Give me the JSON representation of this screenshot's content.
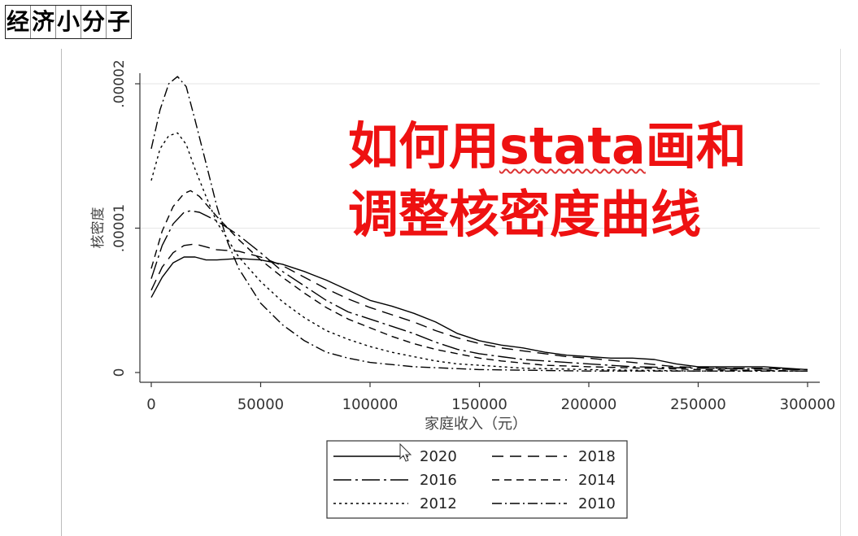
{
  "logo_text": [
    "经",
    "济",
    "小",
    "分",
    "子"
  ],
  "overlay": {
    "line1_prefix": "如何用",
    "line1_word": "stata",
    "line1_suffix": "画和",
    "line2": "调整核密度曲线"
  },
  "colors": {
    "overlay": "#ee1111",
    "lines": "#000000",
    "grid": "#e6e6e6"
  },
  "chart_data": {
    "type": "line",
    "xlabel": "家庭收入（元）",
    "ylabel": "核密度",
    "xlim": [
      0,
      300000
    ],
    "ylim": [
      0,
      2e-05
    ],
    "xticks": [
      0,
      50000,
      100000,
      150000,
      200000,
      250000,
      300000
    ],
    "xtick_labels": [
      "0",
      "50000",
      "100000",
      "150000",
      "200000",
      "250000",
      "300000"
    ],
    "yticks": [
      0,
      1e-05,
      2e-05
    ],
    "ytick_labels": [
      "0",
      ".00001",
      ".00002"
    ],
    "grid": true,
    "legend_position": "bottom",
    "series": [
      {
        "name": "2020",
        "dash": "",
        "points": [
          [
            0,
            5.2e-06
          ],
          [
            5000,
            6.6e-06
          ],
          [
            10000,
            7.6e-06
          ],
          [
            15000,
            8e-06
          ],
          [
            20000,
            8e-06
          ],
          [
            25000,
            7.8e-06
          ],
          [
            30000,
            7.8e-06
          ],
          [
            40000,
            7.9e-06
          ],
          [
            50000,
            7.8e-06
          ],
          [
            60000,
            7.5e-06
          ],
          [
            70000,
            7e-06
          ],
          [
            80000,
            6.4e-06
          ],
          [
            90000,
            5.7e-06
          ],
          [
            100000,
            5e-06
          ],
          [
            110000,
            4.6e-06
          ],
          [
            120000,
            4.1e-06
          ],
          [
            130000,
            3.5e-06
          ],
          [
            140000,
            2.7e-06
          ],
          [
            150000,
            2.2e-06
          ],
          [
            160000,
            1.9e-06
          ],
          [
            170000,
            1.7e-06
          ],
          [
            180000,
            1.4e-06
          ],
          [
            190000,
            1.2e-06
          ],
          [
            200000,
            1.1e-06
          ],
          [
            210000,
            1e-06
          ],
          [
            220000,
            1e-06
          ],
          [
            230000,
            9e-07
          ],
          [
            240000,
            6e-07
          ],
          [
            250000,
            4e-07
          ],
          [
            260000,
            4e-07
          ],
          [
            270000,
            4e-07
          ],
          [
            280000,
            4e-07
          ],
          [
            290000,
            3e-07
          ],
          [
            300000,
            2e-07
          ]
        ]
      },
      {
        "name": "2018",
        "dash": "14,8",
        "points": [
          [
            0,
            5.7e-06
          ],
          [
            5000,
            7.3e-06
          ],
          [
            10000,
            8.3e-06
          ],
          [
            15000,
            8.8e-06
          ],
          [
            20000,
            8.9e-06
          ],
          [
            25000,
            8.7e-06
          ],
          [
            30000,
            8.5e-06
          ],
          [
            40000,
            8.4e-06
          ],
          [
            50000,
            8e-06
          ],
          [
            60000,
            7.4e-06
          ],
          [
            70000,
            6.6e-06
          ],
          [
            80000,
            5.8e-06
          ],
          [
            90000,
            5.1e-06
          ],
          [
            100000,
            4.5e-06
          ],
          [
            110000,
            4e-06
          ],
          [
            120000,
            3.5e-06
          ],
          [
            130000,
            2.9e-06
          ],
          [
            140000,
            2.4e-06
          ],
          [
            150000,
            2e-06
          ],
          [
            160000,
            1.7e-06
          ],
          [
            170000,
            1.5e-06
          ],
          [
            180000,
            1.3e-06
          ],
          [
            190000,
            1.1e-06
          ],
          [
            200000,
            1e-06
          ],
          [
            220000,
            7e-07
          ],
          [
            240000,
            4e-07
          ],
          [
            260000,
            3e-07
          ],
          [
            280000,
            3e-07
          ],
          [
            300000,
            2e-07
          ]
        ]
      },
      {
        "name": "2016",
        "dash": "22,5,3,5",
        "points": [
          [
            0,
            6.5e-06
          ],
          [
            5000,
            8.8e-06
          ],
          [
            10000,
            1.03e-05
          ],
          [
            15000,
            1.11e-05
          ],
          [
            18000,
            1.12e-05
          ],
          [
            22000,
            1.11e-05
          ],
          [
            30000,
            1.05e-05
          ],
          [
            40000,
            9.5e-06
          ],
          [
            50000,
            8.3e-06
          ],
          [
            60000,
            7e-06
          ],
          [
            70000,
            6e-06
          ],
          [
            80000,
            5e-06
          ],
          [
            90000,
            4.2e-06
          ],
          [
            100000,
            3.7e-06
          ],
          [
            110000,
            3.2e-06
          ],
          [
            120000,
            2.7e-06
          ],
          [
            130000,
            2.1e-06
          ],
          [
            140000,
            1.6e-06
          ],
          [
            150000,
            1.3e-06
          ],
          [
            160000,
            1.1e-06
          ],
          [
            170000,
            9e-07
          ],
          [
            180000,
            8e-07
          ],
          [
            200000,
            6e-07
          ],
          [
            220000,
            4e-07
          ],
          [
            250000,
            3e-07
          ],
          [
            300000,
            2e-07
          ]
        ]
      },
      {
        "name": "2014",
        "dash": "9,6",
        "points": [
          [
            0,
            7.2e-06
          ],
          [
            5000,
            9.8e-06
          ],
          [
            10000,
            1.15e-05
          ],
          [
            15000,
            1.24e-05
          ],
          [
            18000,
            1.26e-05
          ],
          [
            22000,
            1.22e-05
          ],
          [
            30000,
            1.08e-05
          ],
          [
            40000,
            9.2e-06
          ],
          [
            50000,
            7.8e-06
          ],
          [
            60000,
            6.6e-06
          ],
          [
            70000,
            5.5e-06
          ],
          [
            80000,
            4.5e-06
          ],
          [
            90000,
            3.7e-06
          ],
          [
            100000,
            3.1e-06
          ],
          [
            110000,
            2.5e-06
          ],
          [
            120000,
            2e-06
          ],
          [
            130000,
            1.6e-06
          ],
          [
            140000,
            1.3e-06
          ],
          [
            150000,
            1e-06
          ],
          [
            160000,
            8e-07
          ],
          [
            180000,
            5e-07
          ],
          [
            200000,
            4e-07
          ],
          [
            250000,
            2e-07
          ],
          [
            300000,
            1e-07
          ]
        ]
      },
      {
        "name": "2012",
        "dash": "3,4",
        "points": [
          [
            0,
            1.33e-05
          ],
          [
            4000,
            1.55e-05
          ],
          [
            8000,
            1.64e-05
          ],
          [
            12000,
            1.66e-05
          ],
          [
            16000,
            1.58e-05
          ],
          [
            20000,
            1.41e-05
          ],
          [
            25000,
            1.22e-05
          ],
          [
            30000,
            1.04e-05
          ],
          [
            40000,
            8e-06
          ],
          [
            50000,
            6.3e-06
          ],
          [
            60000,
            4.9e-06
          ],
          [
            70000,
            3.8e-06
          ],
          [
            80000,
            2.9e-06
          ],
          [
            90000,
            2.3e-06
          ],
          [
            100000,
            1.8e-06
          ],
          [
            110000,
            1.4e-06
          ],
          [
            120000,
            1.1e-06
          ],
          [
            130000,
            8e-07
          ],
          [
            140000,
            6e-07
          ],
          [
            150000,
            5e-07
          ],
          [
            170000,
            3e-07
          ],
          [
            200000,
            2e-07
          ],
          [
            250000,
            1e-07
          ],
          [
            300000,
            1e-07
          ]
        ]
      },
      {
        "name": "2010",
        "dash": "12,4,2,4",
        "points": [
          [
            0,
            1.55e-05
          ],
          [
            4000,
            1.82e-05
          ],
          [
            8000,
            2e-05
          ],
          [
            12000,
            2.05e-05
          ],
          [
            16000,
            1.98e-05
          ],
          [
            20000,
            1.75e-05
          ],
          [
            25000,
            1.45e-05
          ],
          [
            30000,
            1.15e-05
          ],
          [
            35000,
            9e-06
          ],
          [
            40000,
            7.2e-06
          ],
          [
            50000,
            4.8e-06
          ],
          [
            60000,
            3.3e-06
          ],
          [
            70000,
            2.2e-06
          ],
          [
            80000,
            1.4e-06
          ],
          [
            90000,
            1e-06
          ],
          [
            100000,
            7e-07
          ],
          [
            120000,
            4e-07
          ],
          [
            150000,
            2e-07
          ],
          [
            200000,
            1e-07
          ],
          [
            300000,
            1e-07
          ]
        ]
      }
    ]
  }
}
